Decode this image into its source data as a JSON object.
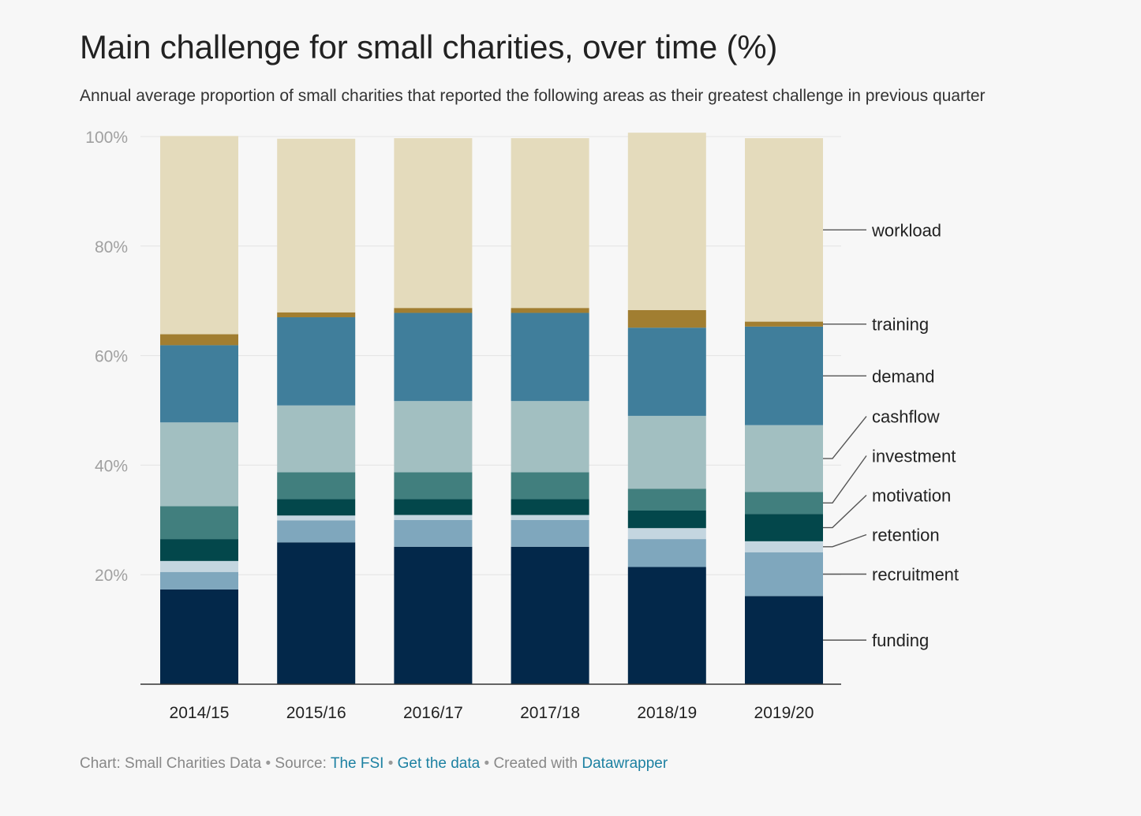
{
  "title": "Main challenge for small charities, over time (%)",
  "subtitle": "Annual average proportion of small charities that reported the following areas as their greatest challenge in previous quarter",
  "footer": {
    "chart_prefix": "Chart: Small Charities Data",
    "source_prefix": "Source:",
    "source_link": "The FSI",
    "get_data": "Get the data",
    "created_prefix": "Created with",
    "created_link": "Datawrapper",
    "separator": "•"
  },
  "chart_data": {
    "type": "bar",
    "stacked": true,
    "categories": [
      "2014/15",
      "2015/16",
      "2016/17",
      "2017/18",
      "2018/19",
      "2019/20"
    ],
    "y_ticks": [
      "20%",
      "40%",
      "60%",
      "80%",
      "100%"
    ],
    "y_tick_values": [
      20,
      40,
      60,
      80,
      100
    ],
    "ylim": [
      0,
      100
    ],
    "grid": true,
    "legend_placement": "right (direct labels)",
    "series": [
      {
        "name": "funding",
        "color": "#03284a",
        "values": [
          17.3,
          25.9,
          25.1,
          25.1,
          21.4,
          16.1
        ]
      },
      {
        "name": "recruitment",
        "color": "#7fa7bd",
        "values": [
          3.2,
          4.0,
          4.9,
          4.9,
          5.1,
          8.0
        ]
      },
      {
        "name": "retention",
        "color": "#c4d6e0",
        "values": [
          2.0,
          0.9,
          0.9,
          0.9,
          2.0,
          2.0
        ]
      },
      {
        "name": "motivation",
        "color": "#03474b",
        "values": [
          4.0,
          3.0,
          2.9,
          2.9,
          3.2,
          5.0
        ]
      },
      {
        "name": "investment",
        "color": "#417f7e",
        "values": [
          6.0,
          4.9,
          4.9,
          4.9,
          4.0,
          4.0
        ]
      },
      {
        "name": "cashflow",
        "color": "#a2bfc1",
        "values": [
          15.3,
          12.2,
          13.0,
          13.0,
          13.3,
          12.2
        ]
      },
      {
        "name": "demand",
        "color": "#407e9b",
        "values": [
          14.1,
          16.1,
          16.1,
          16.1,
          16.1,
          18.0
        ]
      },
      {
        "name": "training",
        "color": "#a17e31",
        "values": [
          2.0,
          0.9,
          0.9,
          0.9,
          3.2,
          0.9
        ]
      },
      {
        "name": "workload",
        "color": "#e4dbbc",
        "values": [
          36.2,
          31.7,
          31.0,
          31.0,
          32.4,
          33.5
        ]
      }
    ]
  }
}
